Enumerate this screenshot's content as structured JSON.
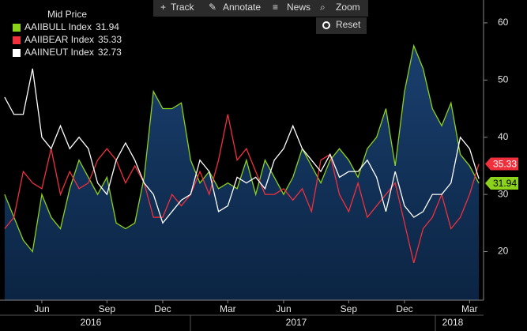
{
  "chart_data": {
    "type": "line",
    "legend_title": "Mid Price",
    "toolbar": [
      "Track",
      "Annotate",
      "News",
      "Zoom",
      "Reset"
    ],
    "categories": [
      null,
      null,
      null,
      null,
      "Jun",
      null,
      null,
      null,
      null,
      null,
      null,
      "Sep",
      null,
      null,
      null,
      null,
      null,
      "Dec",
      null,
      null,
      null,
      null,
      null,
      null,
      "Mar",
      null,
      null,
      null,
      null,
      null,
      "Jun",
      null,
      null,
      null,
      null,
      null,
      null,
      "Sep",
      null,
      null,
      null,
      null,
      null,
      "Dec",
      null,
      null,
      null,
      null,
      null,
      null,
      "Mar",
      null
    ],
    "years": [
      "2016",
      "2017",
      "2018"
    ],
    "series": [
      {
        "name": "AAIIBULL Index",
        "color": "#8cd11a",
        "fill": true,
        "values": [
          30,
          26,
          22,
          20,
          30,
          26,
          24,
          31,
          36,
          33,
          30,
          33,
          25,
          24,
          25,
          33,
          48,
          45,
          45,
          46,
          36,
          32,
          34,
          31,
          32,
          31,
          36,
          30,
          36,
          33,
          30,
          33,
          38,
          35,
          32,
          36,
          38,
          36,
          33,
          38,
          40,
          45,
          35,
          48,
          56,
          52,
          45,
          42,
          46,
          37,
          35,
          31.94
        ]
      },
      {
        "name": "AAIIBEAR Index",
        "color": "#f0303c",
        "values": [
          24,
          26,
          34,
          32,
          31,
          38,
          30,
          34,
          31,
          32,
          36,
          38,
          36,
          32,
          35,
          32,
          26,
          26,
          30,
          28,
          30,
          34,
          30,
          36,
          44,
          36,
          38,
          34,
          30,
          30,
          31,
          29,
          31,
          27,
          36,
          37,
          30,
          27,
          32,
          26,
          28,
          30,
          32,
          25,
          18,
          24,
          26,
          30,
          24,
          26,
          30,
          35.33
        ]
      },
      {
        "name": "AAIINEUT Index",
        "color": "#ffffff",
        "values": [
          47,
          44,
          44,
          52,
          40,
          38,
          42,
          38,
          40,
          38,
          32,
          30,
          36,
          39,
          36,
          32,
          30,
          25,
          27,
          29,
          30,
          36,
          34,
          27,
          28,
          33,
          32,
          33,
          31,
          36,
          38,
          42,
          38,
          36,
          34,
          37,
          33,
          34,
          34,
          36,
          33,
          27,
          34,
          28,
          26,
          27,
          30,
          30,
          32,
          40,
          38,
          32.73
        ]
      }
    ],
    "axis_tag_series": [
      1,
      0
    ],
    "ylim": [
      11.5,
      64
    ],
    "yticks": [
      20,
      30,
      40,
      50,
      60
    ]
  }
}
